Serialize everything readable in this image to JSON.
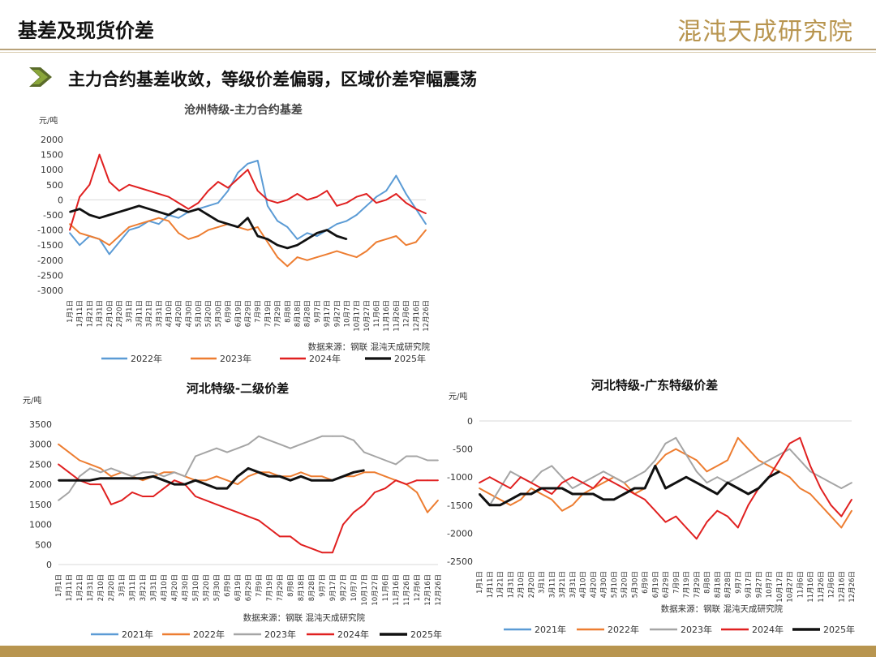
{
  "header": {
    "title": "基差及现货价差",
    "logo": "混沌天成研究院"
  },
  "subtitle": "主力合约基差收敛，等级价差偏弱，区域价差窄幅震荡",
  "chart_data": [
    {
      "id": "c1",
      "type": "line",
      "title": "沧州特级-主力合约基差",
      "unit": "元/吨",
      "ylim": [
        -3000,
        2000
      ],
      "yticks": [
        2000,
        1500,
        1000,
        500,
        0,
        -500,
        -1000,
        -1500,
        -2000,
        -2500,
        -3000
      ],
      "categories": [
        "1月1日",
        "1月11日",
        "1月21日",
        "1月31日",
        "2月10日",
        "2月20日",
        "3月1日",
        "3月11日",
        "3月21日",
        "3月31日",
        "4月10日",
        "4月20日",
        "4月30日",
        "5月10日",
        "5月20日",
        "5月30日",
        "6月9日",
        "6月19日",
        "6月29日",
        "7月9日",
        "7月19日",
        "7月29日",
        "8月8日",
        "8月18日",
        "8月28日",
        "9月7日",
        "9月17日",
        "9月27日",
        "10月7日",
        "10月17日",
        "10月27日",
        "11月6日",
        "11月16日",
        "11月26日",
        "12月6日",
        "12月16日",
        "12月26日"
      ],
      "source": "数据来源：钢联  混沌天成研究院",
      "series": [
        {
          "name": "2022年",
          "color": "#5b9bd5",
          "width": 2,
          "values": [
            -1100,
            -1500,
            -1200,
            -1300,
            -1800,
            -1400,
            -1000,
            -900,
            -700,
            -800,
            -500,
            -600,
            -400,
            -300,
            -200,
            -100,
            300,
            900,
            1200,
            1300,
            -200,
            -700,
            -900,
            -1300,
            -1100,
            -1200,
            -1000,
            -800,
            -700,
            -500,
            -200,
            100,
            300,
            800,
            200,
            -300,
            -800
          ]
        },
        {
          "name": "2023年",
          "color": "#ed7d31",
          "width": 2,
          "values": [
            -800,
            -1100,
            -1200,
            -1300,
            -1500,
            -1200,
            -900,
            -800,
            -700,
            -600,
            -700,
            -1100,
            -1300,
            -1200,
            -1000,
            -900,
            -800,
            -900,
            -1000,
            -900,
            -1400,
            -1900,
            -2200,
            -1900,
            -2000,
            -1900,
            -1800,
            -1700,
            -1800,
            -1900,
            -1700,
            -1400,
            -1300,
            -1200,
            -1500,
            -1400,
            -1000
          ]
        },
        {
          "name": "2024年",
          "color": "#e02020",
          "width": 2,
          "values": [
            -1000,
            100,
            500,
            1500,
            600,
            300,
            500,
            400,
            300,
            200,
            100,
            -100,
            -300,
            -100,
            300,
            600,
            400,
            700,
            1000,
            300,
            0,
            -100,
            0,
            200,
            0,
            100,
            300,
            -200,
            -100,
            100,
            200,
            -100,
            0,
            200,
            -100,
            -300,
            -450
          ]
        },
        {
          "name": "2025年",
          "color": "#111111",
          "width": 2.8,
          "values": [
            -400,
            -300,
            -500,
            -600,
            -500,
            -400,
            -300,
            -200,
            -300,
            -400,
            -500,
            -300,
            -400,
            -300,
            -500,
            -700,
            -800,
            -900,
            -600,
            -1200,
            -1300,
            -1500,
            -1600,
            -1500,
            -1300,
            -1100,
            -1000,
            -1200,
            -1300,
            null,
            null,
            null,
            null,
            null,
            null,
            null,
            null
          ]
        }
      ]
    },
    {
      "id": "c2",
      "type": "line",
      "title": "河北特级-二级价差",
      "unit": "元/吨",
      "ylim": [
        0,
        3500
      ],
      "yticks": [
        3500,
        3000,
        2500,
        2000,
        1500,
        1000,
        500,
        0
      ],
      "categories": [
        "1月1日",
        "1月11日",
        "1月21日",
        "1月31日",
        "2月10日",
        "2月20日",
        "3月1日",
        "3月11日",
        "3月21日",
        "3月31日",
        "4月10日",
        "4月20日",
        "4月30日",
        "5月10日",
        "5月20日",
        "5月30日",
        "6月9日",
        "6月19日",
        "6月29日",
        "7月9日",
        "7月19日",
        "7月29日",
        "8月8日",
        "8月18日",
        "8月28日",
        "9月7日",
        "9月17日",
        "9月27日",
        "10月7日",
        "10月17日",
        "10月27日",
        "11月6日",
        "11月16日",
        "11月26日",
        "12月6日",
        "12月16日",
        "12月26日"
      ],
      "source": "数据来源：钢联  混沌天成研究院",
      "series": [
        {
          "name": "2021年",
          "color": "#5b9bd5",
          "width": 2,
          "values": [
            null,
            null,
            null,
            null,
            null,
            null,
            null,
            null,
            null,
            null,
            null,
            null,
            null,
            null,
            null,
            null,
            null,
            null,
            null,
            null,
            null,
            null,
            null,
            null,
            null,
            null,
            null,
            null,
            null,
            null,
            null,
            null,
            null,
            null,
            null,
            null,
            null
          ]
        },
        {
          "name": "2022年",
          "color": "#ed7d31",
          "width": 2,
          "values": [
            3000,
            2800,
            2600,
            2500,
            2400,
            2200,
            2300,
            2200,
            2100,
            2200,
            2300,
            2300,
            2200,
            2100,
            2100,
            2200,
            2100,
            2000,
            2200,
            2300,
            2300,
            2200,
            2200,
            2300,
            2200,
            2200,
            2100,
            2200,
            2200,
            2300,
            2300,
            2200,
            2100,
            2000,
            1800,
            1300,
            1600
          ]
        },
        {
          "name": "2023年",
          "color": "#a5a5a5",
          "width": 2,
          "values": [
            1600,
            1800,
            2200,
            2400,
            2300,
            2400,
            2300,
            2200,
            2300,
            2300,
            2200,
            2300,
            2200,
            2700,
            2800,
            2900,
            2800,
            2900,
            3000,
            3200,
            3100,
            3000,
            2900,
            3000,
            3100,
            3200,
            3200,
            3200,
            3100,
            2800,
            2700,
            2600,
            2500,
            2700,
            2700,
            2600,
            2600
          ]
        },
        {
          "name": "2024年",
          "color": "#e02020",
          "width": 2,
          "values": [
            2500,
            2300,
            2100,
            2000,
            2000,
            1500,
            1600,
            1800,
            1700,
            1700,
            1900,
            2100,
            2000,
            1700,
            1600,
            1500,
            1400,
            1300,
            1200,
            1100,
            900,
            700,
            700,
            500,
            400,
            300,
            300,
            1000,
            1300,
            1500,
            1800,
            1900,
            2100,
            2000,
            2100,
            2100,
            2100
          ]
        },
        {
          "name": "2025年",
          "color": "#111111",
          "width": 3,
          "values": [
            2100,
            2100,
            2100,
            2100,
            2150,
            2150,
            2150,
            2150,
            2150,
            2200,
            2100,
            2000,
            2000,
            2100,
            2000,
            1900,
            1900,
            2200,
            2400,
            2300,
            2200,
            2200,
            2100,
            2200,
            2100,
            2100,
            2100,
            2200,
            2300,
            2350,
            null,
            null,
            null,
            null,
            null,
            null,
            null
          ]
        }
      ]
    },
    {
      "id": "c3",
      "type": "line",
      "title": "河北特级-广东特级价差",
      "unit": "元/吨",
      "ylim": [
        -2500,
        0
      ],
      "yticks": [
        0,
        -500,
        -1000,
        -1500,
        -2000,
        -2500
      ],
      "categories": [
        "1月1日",
        "1月11日",
        "1月21日",
        "1月31日",
        "2月10日",
        "2月20日",
        "3月1日",
        "3月11日",
        "3月21日",
        "3月31日",
        "4月10日",
        "4月20日",
        "4月30日",
        "5月10日",
        "5月20日",
        "5月30日",
        "6月9日",
        "6月19日",
        "6月29日",
        "7月9日",
        "7月19日",
        "7月29日",
        "8月8日",
        "8月18日",
        "8月28日",
        "9月7日",
        "9月17日",
        "9月27日",
        "10月7日",
        "10月17日",
        "10月27日",
        "11月6日",
        "11月16日",
        "11月26日",
        "12月6日",
        "12月16日",
        "12月26日"
      ],
      "source": "数据来源：钢联  混沌天成研究院",
      "series": [
        {
          "name": "2021年",
          "color": "#5b9bd5",
          "width": 2,
          "values": [
            null,
            null,
            null,
            null,
            null,
            null,
            null,
            null,
            null,
            null,
            null,
            null,
            null,
            null,
            null,
            null,
            null,
            null,
            null,
            null,
            null,
            null,
            null,
            null,
            null,
            null,
            null,
            null,
            null,
            null,
            null,
            null,
            null,
            null,
            null,
            null,
            null
          ]
        },
        {
          "name": "2022年",
          "color": "#ed7d31",
          "width": 2,
          "values": [
            -1200,
            -1300,
            -1400,
            -1500,
            -1400,
            -1200,
            -1300,
            -1400,
            -1600,
            -1500,
            -1300,
            -1200,
            -1100,
            -1000,
            -1100,
            -1300,
            -1200,
            -800,
            -600,
            -500,
            -600,
            -700,
            -900,
            -800,
            -700,
            -300,
            -500,
            -700,
            -800,
            -900,
            -1000,
            -1200,
            -1300,
            -1500,
            -1700,
            -1900,
            -1600
          ]
        },
        {
          "name": "2023年",
          "color": "#a5a5a5",
          "width": 2,
          "values": [
            -1300,
            -1500,
            -1200,
            -900,
            -1000,
            -1100,
            -900,
            -800,
            -1000,
            -1200,
            -1100,
            -1000,
            -900,
            -1000,
            -1100,
            -1000,
            -900,
            -700,
            -400,
            -300,
            -600,
            -900,
            -1100,
            -1000,
            -1100,
            -1000,
            -900,
            -800,
            -700,
            -600,
            -500,
            -700,
            -900,
            -1000,
            -1100,
            -1200,
            -1100
          ]
        },
        {
          "name": "2024年",
          "color": "#e02020",
          "width": 2,
          "values": [
            -1100,
            -1000,
            -1100,
            -1200,
            -1000,
            -1100,
            -1200,
            -1300,
            -1100,
            -1000,
            -1100,
            -1200,
            -1000,
            -1100,
            -1200,
            -1300,
            -1400,
            -1600,
            -1800,
            -1700,
            -1900,
            -2100,
            -1800,
            -1600,
            -1700,
            -1900,
            -1500,
            -1200,
            -1000,
            -700,
            -400,
            -300,
            -800,
            -1200,
            -1500,
            -1700,
            -1400
          ]
        },
        {
          "name": "2025年",
          "color": "#111111",
          "width": 3,
          "values": [
            -1300,
            -1500,
            -1500,
            -1400,
            -1300,
            -1300,
            -1200,
            -1200,
            -1200,
            -1300,
            -1300,
            -1300,
            -1400,
            -1400,
            -1300,
            -1200,
            -1200,
            -800,
            -1200,
            -1100,
            -1000,
            -1100,
            -1200,
            -1300,
            -1100,
            -1200,
            -1300,
            -1200,
            -1000,
            -900,
            null,
            null,
            null,
            null,
            null,
            null,
            null
          ]
        }
      ]
    }
  ]
}
